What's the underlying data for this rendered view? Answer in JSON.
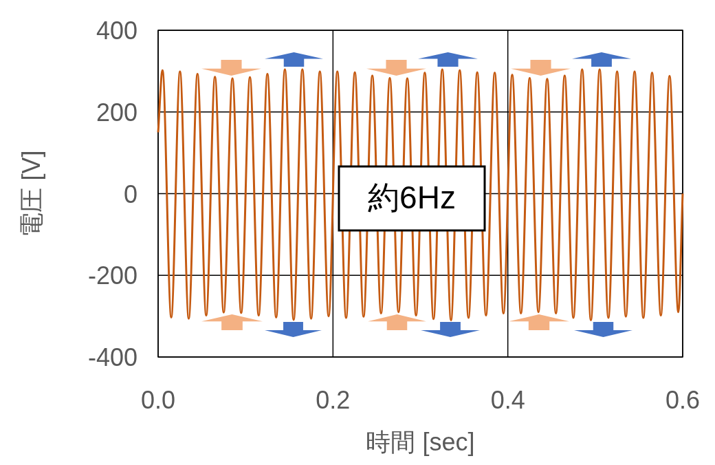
{
  "chart_data": {
    "type": "line",
    "xlabel": "時間 [sec]",
    "ylabel": "電圧 [V]",
    "annotations": [
      "約6Hz"
    ],
    "xlim": [
      0,
      0.6
    ],
    "xticks": [
      {
        "value": 0,
        "label": "0.0"
      },
      {
        "value": 0.2,
        "label": "0.2"
      },
      {
        "value": 0.4,
        "label": "0.4"
      },
      {
        "value": 0.6,
        "label": "0.6"
      }
    ],
    "ylim": [
      -400,
      400
    ],
    "yticks": [
      -400,
      -200,
      0,
      200,
      400
    ],
    "grid": true,
    "series": [
      {
        "color": "#c55a11",
        "x": [
          0,
          0.005,
          0.015,
          0.025,
          0.035,
          0.045,
          0.055,
          0.065,
          0.075,
          0.085,
          0.095,
          0.105,
          0.115,
          0.125,
          0.135,
          0.145,
          0.155,
          0.165,
          0.175,
          0.185,
          0.195,
          0.205,
          0.215,
          0.225,
          0.235,
          0.245,
          0.255,
          0.265,
          0.275,
          0.285,
          0.295,
          0.305,
          0.315,
          0.325,
          0.335,
          0.345,
          0.355,
          0.365,
          0.375,
          0.385,
          0.395,
          0.405,
          0.415,
          0.425,
          0.435,
          0.445,
          0.455,
          0.465,
          0.475,
          0.485,
          0.495,
          0.505,
          0.515,
          0.525,
          0.535,
          0.545,
          0.555,
          0.565,
          0.575,
          0.585,
          0.595,
          0.6
        ],
        "values": [
          150,
          302,
          -303,
          299,
          -306,
          293,
          -298,
          286,
          -291,
          282,
          -292,
          285,
          -298,
          293,
          -303,
          304,
          -309,
          304,
          -306,
          299,
          -300,
          299,
          -304,
          297,
          -301,
          289,
          -293,
          283,
          -290,
          282,
          -298,
          296,
          -307,
          304,
          -310,
          302,
          -304,
          297,
          -298,
          296,
          -293,
          291,
          -293,
          283,
          -290,
          281,
          -293,
          289,
          -304,
          304,
          -310,
          304,
          -304,
          299,
          -301,
          299,
          -304,
          296,
          -298,
          288,
          -290,
          0
        ]
      }
    ]
  }
}
